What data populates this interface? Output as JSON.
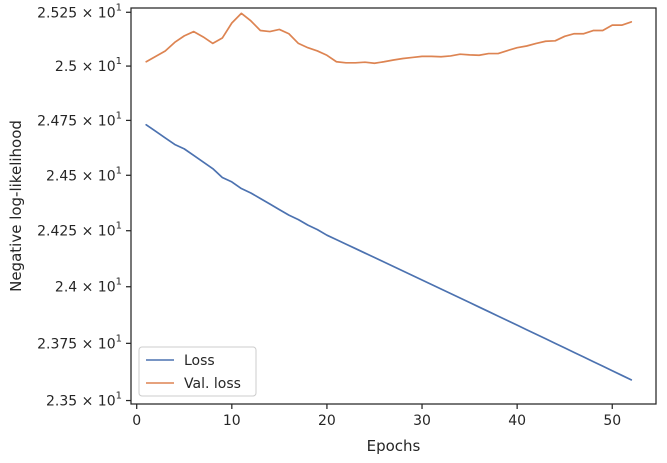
{
  "chart_data": {
    "type": "line",
    "xlabel": "Epochs",
    "ylabel": "Negative log-likelihood",
    "xlim": [
      -0.6,
      54.6
    ],
    "ylim": [
      23.485,
      25.27
    ],
    "y_scale": "log",
    "grid": false,
    "legend_placement": "lower-left",
    "x_ticks": [
      {
        "value": 0,
        "label": "0"
      },
      {
        "value": 10,
        "label": "10"
      },
      {
        "value": 20,
        "label": "20"
      },
      {
        "value": 30,
        "label": "30"
      },
      {
        "value": 40,
        "label": "40"
      },
      {
        "value": 50,
        "label": "50"
      }
    ],
    "y_ticks": [
      {
        "value": 23.5,
        "mantissa": "2.35",
        "sup": "1"
      },
      {
        "value": 23.75,
        "mantissa": "2.375",
        "sup": "1"
      },
      {
        "value": 24.0,
        "mantissa": "2.4",
        "sup": "1"
      },
      {
        "value": 24.25,
        "mantissa": "2.425",
        "sup": "1"
      },
      {
        "value": 24.5,
        "mantissa": "2.45",
        "sup": "1"
      },
      {
        "value": 24.75,
        "mantissa": "2.475",
        "sup": "1"
      },
      {
        "value": 25.0,
        "mantissa": "2.5",
        "sup": "1"
      },
      {
        "value": 25.25,
        "mantissa": "2.525",
        "sup": "1"
      }
    ],
    "tick_base": "10",
    "tick_times": "×",
    "x": [
      1,
      2,
      3,
      4,
      5,
      6,
      7,
      8,
      9,
      10,
      11,
      12,
      13,
      14,
      15,
      16,
      17,
      18,
      19,
      20,
      21,
      22,
      23,
      24,
      25,
      26,
      27,
      28,
      29,
      30,
      31,
      32,
      33,
      34,
      35,
      36,
      37,
      38,
      39,
      40,
      41,
      42,
      43,
      44,
      45,
      46,
      47,
      48,
      49,
      50,
      51,
      52
    ],
    "series": [
      {
        "name": "Loss",
        "color": "#4c72b0",
        "values": [
          24.73,
          24.7,
          24.67,
          24.64,
          24.62,
          24.59,
          24.56,
          24.53,
          24.49,
          24.47,
          24.44,
          24.42,
          24.395,
          24.37,
          24.345,
          24.32,
          24.3,
          24.275,
          24.255,
          24.23,
          24.21,
          24.19,
          24.17,
          24.15,
          24.13,
          24.11,
          24.09,
          24.07,
          24.05,
          24.03,
          24.01,
          23.99,
          23.97,
          23.95,
          23.93,
          23.91,
          23.89,
          23.87,
          23.85,
          23.83,
          23.81,
          23.79,
          23.77,
          23.75,
          23.73,
          23.71,
          23.69,
          23.67,
          23.65,
          23.63,
          23.61,
          23.59
        ]
      },
      {
        "name": "Val. loss",
        "color": "#dd8452",
        "values": [
          25.02,
          25.045,
          25.07,
          25.11,
          25.14,
          25.16,
          25.135,
          25.105,
          25.13,
          25.2,
          25.245,
          25.21,
          25.165,
          25.16,
          25.17,
          25.15,
          25.105,
          25.085,
          25.07,
          25.05,
          25.02,
          25.015,
          25.015,
          25.018,
          25.013,
          25.02,
          25.028,
          25.035,
          25.04,
          25.045,
          25.045,
          25.043,
          25.047,
          25.055,
          25.052,
          25.05,
          25.058,
          25.058,
          25.072,
          25.085,
          25.093,
          25.105,
          25.115,
          25.117,
          25.138,
          25.15,
          25.15,
          25.165,
          25.165,
          25.19,
          25.19,
          25.205
        ]
      }
    ]
  }
}
